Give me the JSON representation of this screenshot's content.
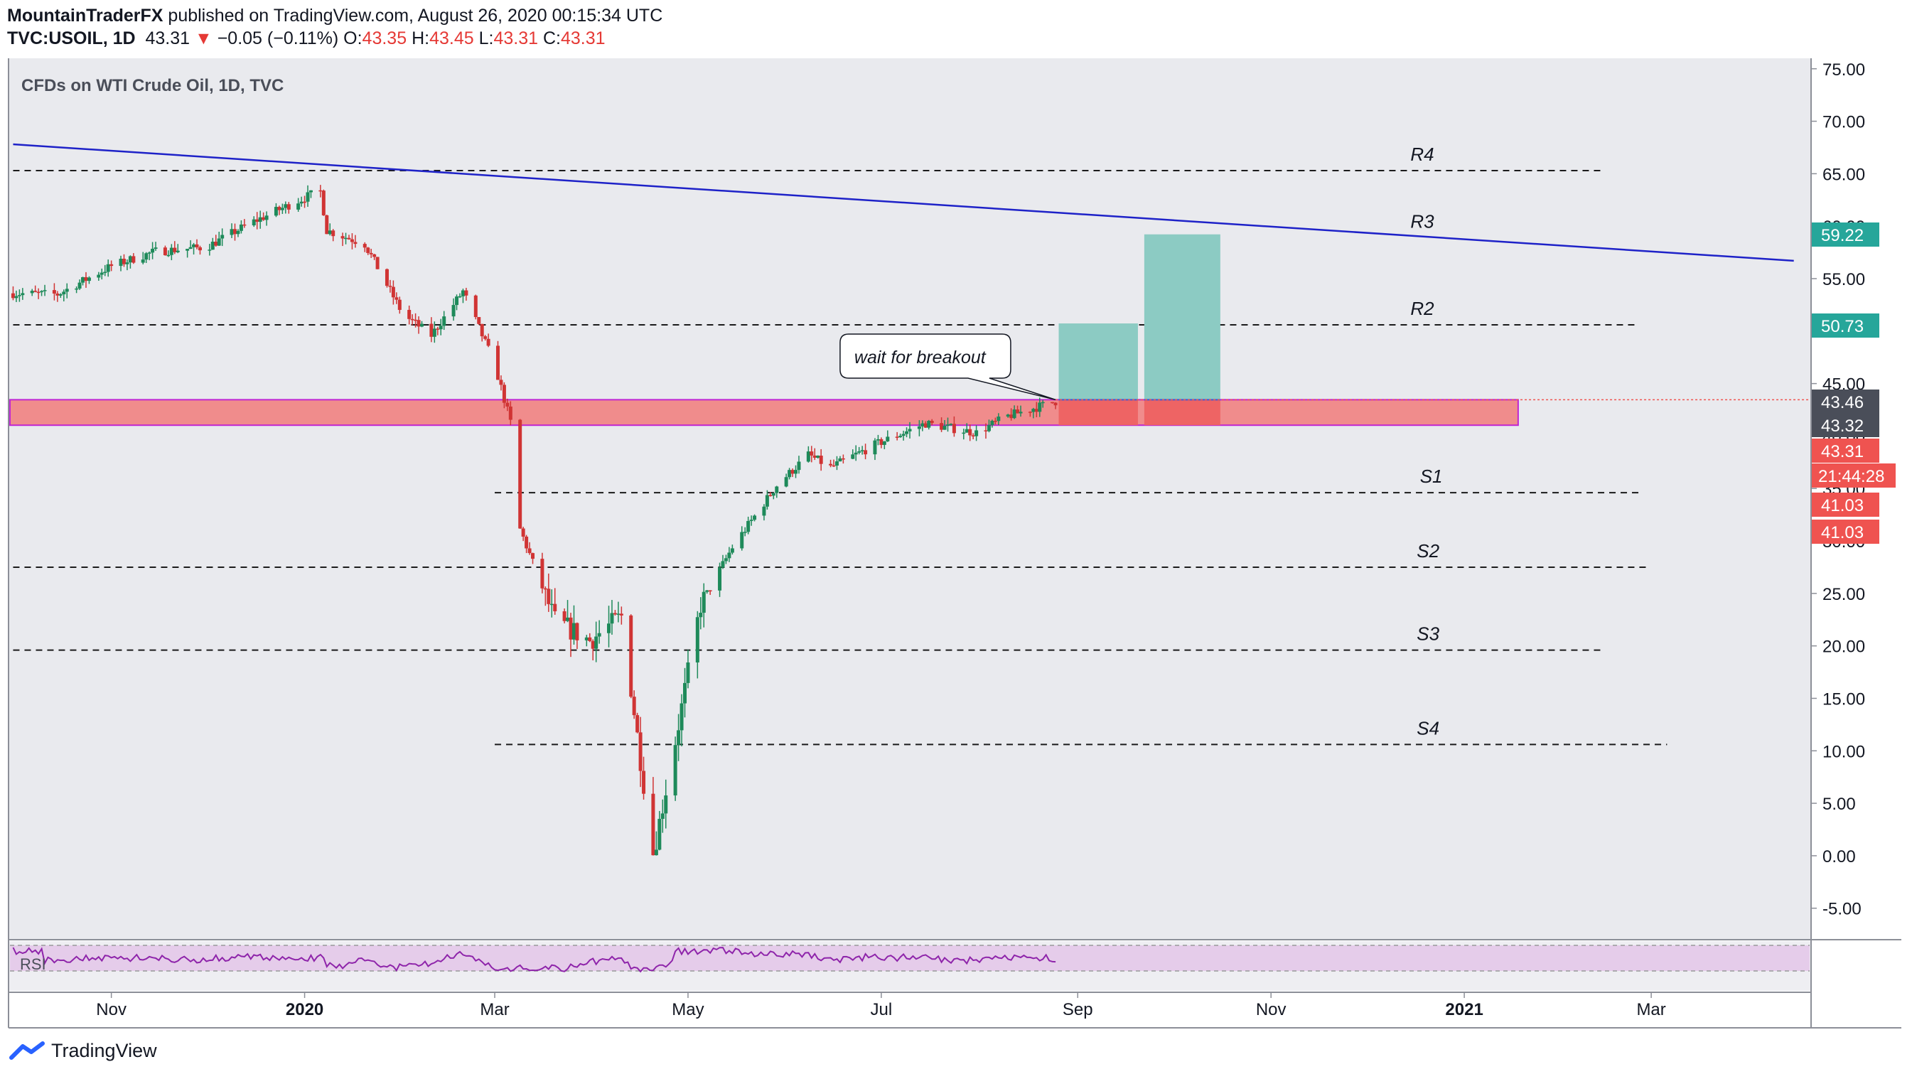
{
  "header": {
    "author": "MountainTraderFX",
    "published": " published on TradingView.com, August 26, 2020 00:15:34 UTC",
    "symbol": "TVC:USOIL, 1D",
    "last": "43.31",
    "change": "−0.05 (−0.11%)",
    "o_label": "O:",
    "o": "43.35",
    "h_label": "H:",
    "h": "43.45",
    "l_label": "L:",
    "l": "43.31",
    "c_label": "C:",
    "c": "43.31"
  },
  "chart_title": "CFDs on WTI Crude Oil, 1D, TVC",
  "footer": {
    "brand": "TradingView"
  },
  "colors": {
    "up": "#26a69a",
    "down": "#ef5350",
    "trend": "#1e22c8",
    "zone": "#f08c8c",
    "rsi": "#8e24aa"
  },
  "chart_data": {
    "type": "candlestick",
    "title": "CFDs on WTI Crude Oil, 1D, TVC",
    "y_axis": {
      "ylim": [
        -8,
        76
      ],
      "ticks": [
        "75.00",
        "70.00",
        "65.00",
        "60.00",
        "55.00",
        "50.00",
        "45.00",
        "40.00",
        "35.00",
        "30.00",
        "25.00",
        "20.00",
        "15.00",
        "10.00",
        "5.00",
        "0.00",
        "-5.00"
      ],
      "tick_values": [
        75,
        70,
        65,
        60,
        55,
        50,
        45,
        40,
        35,
        30,
        25,
        20,
        15,
        10,
        5,
        0,
        -5
      ]
    },
    "x_axis": {
      "ticks": [
        "Nov",
        "2020",
        "Mar",
        "May",
        "Jul",
        "Sep",
        "Nov",
        "2021",
        "Mar"
      ]
    },
    "close_series": [
      {
        "date": "2019-10-01",
        "v": 53.6
      },
      {
        "date": "2019-10-15",
        "v": 53.5
      },
      {
        "date": "2019-11-01",
        "v": 56.2
      },
      {
        "date": "2019-11-15",
        "v": 57.6
      },
      {
        "date": "2019-12-01",
        "v": 58.0
      },
      {
        "date": "2019-12-15",
        "v": 60.3
      },
      {
        "date": "2020-01-03",
        "v": 63.0
      },
      {
        "date": "2020-01-06",
        "v": 63.3
      },
      {
        "date": "2020-01-08",
        "v": 59.6
      },
      {
        "date": "2020-01-20",
        "v": 58.3
      },
      {
        "date": "2020-02-01",
        "v": 51.6
      },
      {
        "date": "2020-02-10",
        "v": 49.6
      },
      {
        "date": "2020-02-20",
        "v": 53.8
      },
      {
        "date": "2020-03-01",
        "v": 46.8
      },
      {
        "date": "2020-03-06",
        "v": 41.3
      },
      {
        "date": "2020-03-09",
        "v": 31.1
      },
      {
        "date": "2020-03-20",
        "v": 22.4
      },
      {
        "date": "2020-03-31",
        "v": 20.5
      },
      {
        "date": "2020-04-10",
        "v": 22.8
      },
      {
        "date": "2020-04-20",
        "v": 0.1
      },
      {
        "date": "2020-04-28",
        "v": 12.5
      },
      {
        "date": "2020-05-05",
        "v": 23.9
      },
      {
        "date": "2020-05-15",
        "v": 29.4
      },
      {
        "date": "2020-05-29",
        "v": 35.3
      },
      {
        "date": "2020-06-08",
        "v": 38.2
      },
      {
        "date": "2020-06-15",
        "v": 37.0
      },
      {
        "date": "2020-06-30",
        "v": 39.3
      },
      {
        "date": "2020-07-15",
        "v": 41.2
      },
      {
        "date": "2020-07-31",
        "v": 40.3
      },
      {
        "date": "2020-08-10",
        "v": 41.9
      },
      {
        "date": "2020-08-25",
        "v": 43.3
      }
    ],
    "levels": [
      {
        "name": "R4",
        "value": 65.3
      },
      {
        "name": "R3",
        "value": 58.9
      },
      {
        "name": "R2",
        "value": 50.6
      },
      {
        "name": "S1",
        "value": 34.6
      },
      {
        "name": "S2",
        "value": 27.5
      },
      {
        "name": "S3",
        "value": 19.6
      },
      {
        "name": "S4",
        "value": 10.6
      }
    ],
    "zone": {
      "low": 41.03,
      "high": 43.46
    },
    "trendline": {
      "start": {
        "date": "2019-10-01",
        "value": 67.8
      },
      "end": {
        "date": "2021-04-15",
        "value": 56.7
      }
    },
    "targets": [
      {
        "from_date": "2020-08-26",
        "to_date": "2020-09-20",
        "entry": 43.46,
        "target": 50.73,
        "stop": 41.03
      },
      {
        "from_date": "2020-09-22",
        "to_date": "2020-10-16",
        "entry": 43.46,
        "target": 59.22,
        "stop": 41.03
      }
    ],
    "price_labels": [
      {
        "text": "59.22",
        "value": 59.22,
        "color": "#26a69a"
      },
      {
        "text": "50.73",
        "value": 50.73,
        "color": "#26a69a"
      },
      {
        "text": "43.46",
        "value": 43.46,
        "color": "#4a4e59"
      },
      {
        "text": "43.32",
        "value": 43.32,
        "color": "#4a4e59"
      },
      {
        "text": "43.31",
        "value": 43.31,
        "color": "#ef5350",
        "sub": "21:44:28"
      },
      {
        "text": "41.03",
        "value": 41.03,
        "color": "#ef5350"
      },
      {
        "text": "41.03",
        "value": 41.03,
        "color": "#ef5350"
      }
    ],
    "annotation": "wait for breakout",
    "rsi_label": "RSI"
  }
}
